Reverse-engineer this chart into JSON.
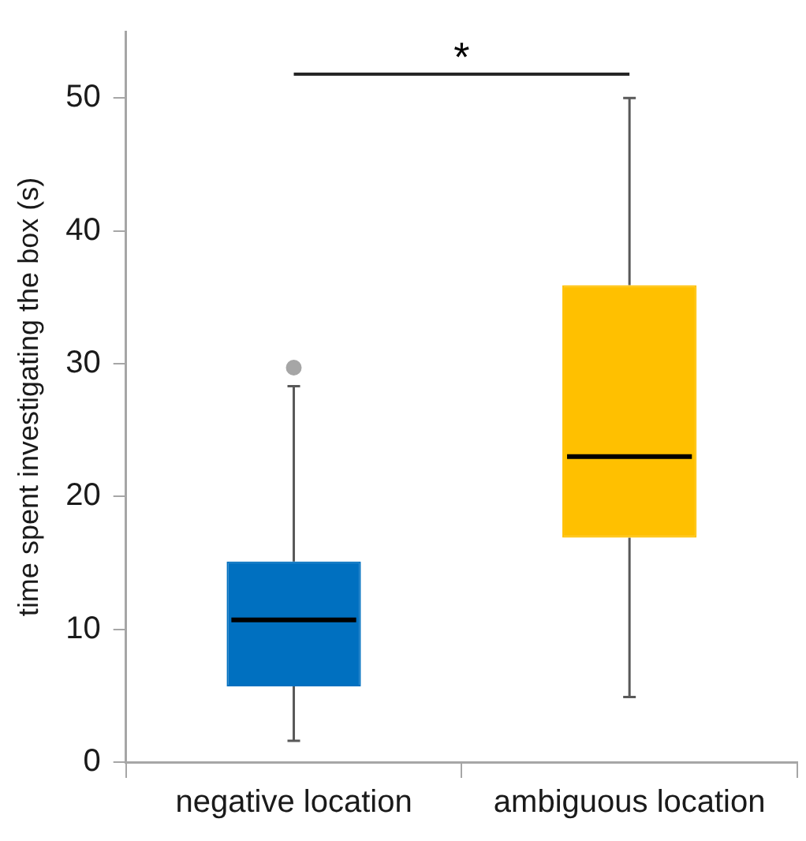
{
  "chart_data": {
    "type": "box",
    "ylabel": "time spent investigating the box (s)",
    "categories": [
      "negative location",
      "ambiguous location"
    ],
    "colors": [
      "#0070c0",
      "#ffc000"
    ],
    "boxes": [
      {
        "low": 1.6,
        "q1": 5.7,
        "median": 10.7,
        "q3": 15.1,
        "high": 28.3,
        "outliers": [
          29.7
        ]
      },
      {
        "low": 4.9,
        "q1": 16.9,
        "median": 23.0,
        "q3": 35.9,
        "high": 50
      }
    ],
    "ylim": [
      0,
      55
    ],
    "yticks": [
      0,
      10,
      20,
      30,
      40,
      50
    ],
    "grid": false,
    "legend": false,
    "annotations": [
      "*"
    ]
  }
}
